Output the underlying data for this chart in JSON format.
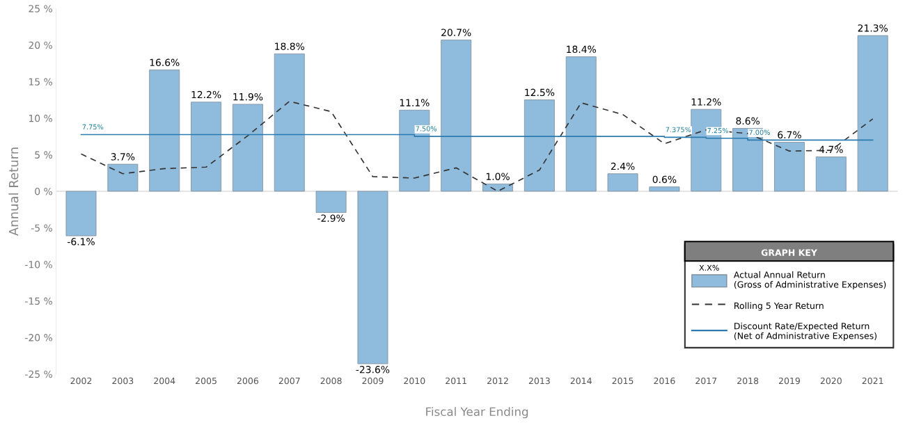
{
  "chart_data": {
    "type": "bar",
    "xlabel": "Fiscal Year Ending",
    "ylabel": "Annual Return",
    "categories": [
      "2002",
      "2003",
      "2004",
      "2005",
      "2006",
      "2007",
      "2008",
      "2009",
      "2010",
      "2011",
      "2012",
      "2013",
      "2014",
      "2015",
      "2016",
      "2017",
      "2018",
      "2019",
      "2020",
      "2021"
    ],
    "series": [
      {
        "name": "Actual Annual Return\n(Gross of Administrative Expenses)",
        "color": "#8fbbdc",
        "values": [
          -6.1,
          3.7,
          16.6,
          12.2,
          11.9,
          18.8,
          -2.9,
          -23.6,
          11.1,
          20.7,
          1.0,
          12.5,
          18.4,
          2.4,
          0.6,
          11.2,
          8.6,
          6.7,
          4.7,
          21.3
        ],
        "value_labels": [
          "-6.1%",
          "3.7%",
          "16.6%",
          "12.2%",
          "11.9%",
          "18.8%",
          "-2.9%",
          "-23.6%",
          "11.1%",
          "20.7%",
          "1.0%",
          "12.5%",
          "18.4%",
          "2.4%",
          "0.6%",
          "11.2%",
          "8.6%",
          "6.7%",
          "4.7%",
          "21.3%"
        ]
      },
      {
        "name": "Rolling 5 Year Return",
        "type": "line",
        "color": "#333333",
        "line_style": "dashed",
        "values": [
          5.1,
          2.4,
          3.1,
          3.3,
          7.6,
          12.3,
          10.9,
          2.0,
          1.8,
          3.2,
          0.0,
          2.9,
          12.1,
          10.5,
          6.5,
          8.4,
          7.9,
          5.5,
          5.6,
          9.9
        ]
      },
      {
        "name": "Discount Rate/Expected Return\n(Net of Administrative Expenses)",
        "type": "step",
        "color": "#2b7bb0",
        "values": [
          7.75,
          7.75,
          7.75,
          7.75,
          7.75,
          7.75,
          7.75,
          7.75,
          7.5,
          7.5,
          7.5,
          7.5,
          7.5,
          7.5,
          7.375,
          7.25,
          7.0,
          7.0,
          7.0,
          7.0
        ]
      }
    ],
    "annotations": [
      {
        "text": "7.75%",
        "x": "2002",
        "y": 7.75
      },
      {
        "text": "7.50%",
        "x": "2010",
        "y": 7.5
      },
      {
        "text": "7.375%",
        "x": "2016",
        "y": 7.375
      },
      {
        "text": "7.25%",
        "x": "2017",
        "y": 7.25
      },
      {
        "text": "7.00%",
        "x": "2018",
        "y": 7.0
      },
      "X.X%"
    ],
    "ref_lines": [
      {
        "axis": "y",
        "value": 0,
        "color": "#dddddd"
      }
    ],
    "legend_title": "GRAPH KEY",
    "legend": "bottom right",
    "grid": false,
    "ylim": [
      -25,
      25
    ],
    "yticks": [
      {
        "value": -25,
        "label": "-25 %"
      },
      {
        "value": -20,
        "label": "-20 %"
      },
      {
        "value": -15,
        "label": "-15 %"
      },
      {
        "value": -10,
        "label": "-10 %"
      },
      {
        "value": -5,
        "label": "-5 %"
      },
      {
        "value": 0,
        "label": "0 %"
      },
      {
        "value": 5,
        "label": "5 %"
      },
      {
        "value": 10,
        "label": "10 %"
      },
      {
        "value": 15,
        "label": "15 %"
      },
      {
        "value": 20,
        "label": "20 %"
      },
      {
        "value": 25,
        "label": "25 %"
      }
    ]
  }
}
